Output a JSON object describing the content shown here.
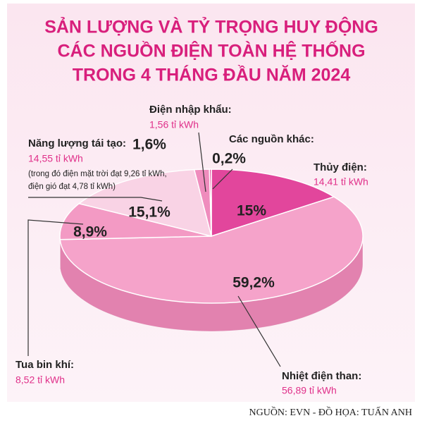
{
  "chart_data": {
    "type": "pie",
    "title": [
      "SẢN LƯỢNG VÀ TỶ TRỌNG HUY ĐỘNG",
      "CÁC NGUỒN ĐIỆN TOÀN HỆ THỐNG",
      "TRONG 4 THÁNG ĐẦU NĂM 2024"
    ],
    "categories": [
      "Thủy điện:",
      "Nhiệt điện than:",
      "Tua bin khí:",
      "Năng lượng tái tạo:",
      "Điện nhập khẩu:",
      "Các nguồn khác:"
    ],
    "values": [
      15,
      59.2,
      8.9,
      15.1,
      1.6,
      0.2
    ],
    "value_labels": [
      "15%",
      "59,2%",
      "8,9%",
      "15,1%",
      "1,6%",
      "0,2%"
    ],
    "amount_labels": [
      "14,41 tỉ kWh",
      "56,89 tỉ kWh",
      "8,52 tỉ kWh",
      "14,55 tỉ kWh",
      "1,56 tỉ kWh",
      null
    ],
    "notes": [
      null,
      null,
      null,
      [
        "(trong đó điện mặt trời đạt 9,26 tỉ kWh,",
        "điện gió đạt 4,78 tỉ kWh)"
      ],
      null,
      null
    ],
    "colors": [
      "#e2469c",
      "#f5a3ca",
      "#f39ac4",
      "#f9d3e5",
      "#ef8cbd",
      "#e2469c"
    ],
    "source": "NGUỒN: EVN - ĐỒ HỌA: TUẤN ANH"
  }
}
